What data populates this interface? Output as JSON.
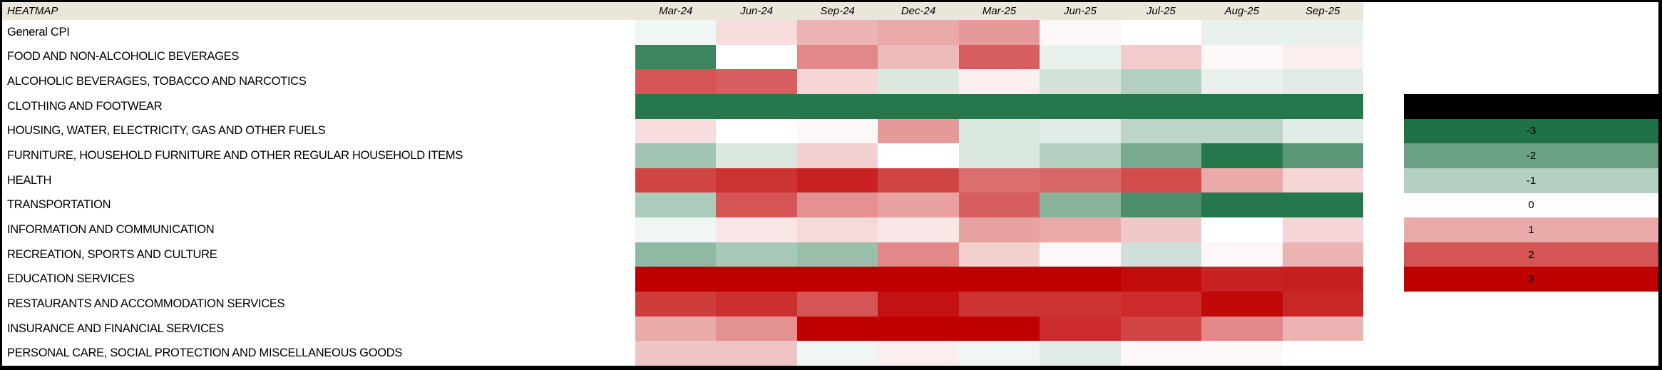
{
  "title": "HEATMAP",
  "colors": {
    "header_bg": "#EAE6DA",
    "frame": "#000000",
    "background": "#FFFFFF",
    "scale_negative_end": "#1F7246",
    "scale_midpoint": "#FFFFFF",
    "scale_positive_end": "#C00000",
    "legend_black_box": "#000000"
  },
  "chart_data": {
    "type": "heatmap",
    "title": "HEATMAP",
    "x_labels": [
      "Mar-24",
      "Jun-24",
      "Sep-24",
      "Dec-24",
      "Mar-25",
      "Jun-25",
      "Jul-25",
      "Aug-25",
      "Sep-25"
    ],
    "rows": [
      {
        "label": "General CPI",
        "values": [
          -0.2,
          0.4,
          0.9,
          1.0,
          1.2,
          0.1,
          0.0,
          -0.3,
          -0.3
        ]
      },
      {
        "label": "FOOD AND NON-ALCOHOLIC BEVERAGES",
        "values": [
          -2.6,
          0.0,
          1.4,
          0.8,
          1.9,
          -0.3,
          0.6,
          0.1,
          0.2
        ]
      },
      {
        "label": "ALCOHOLIC BEVERAGES, TOBACCO AND NARCOTICS",
        "values": [
          2.0,
          1.9,
          0.5,
          -0.5,
          0.2,
          -0.6,
          -1.0,
          -0.3,
          -0.4
        ]
      },
      {
        "label": "CLOTHING AND FOOTWEAR",
        "values": [
          -2.9,
          -2.9,
          -2.9,
          -2.9,
          -2.9,
          -2.9,
          -2.9,
          -2.9,
          -2.9
        ]
      },
      {
        "label": "HOUSING, WATER, ELECTRICITY, GAS AND OTHER FUELS",
        "values": [
          0.4,
          0.0,
          0.1,
          1.2,
          -0.5,
          -0.4,
          -0.9,
          -0.9,
          -0.4
        ]
      },
      {
        "label": "FURNITURE, HOUSEHOLD FURNITURE AND OTHER REGULAR HOUSEHOLD ITEMS",
        "values": [
          -1.25,
          -0.5,
          0.55,
          0.0,
          -0.5,
          -1.0,
          -1.8,
          -2.9,
          -2.2
        ]
      },
      {
        "label": "HEALTH",
        "values": [
          2.2,
          2.4,
          2.6,
          2.2,
          1.7,
          1.8,
          2.1,
          1.0,
          0.5
        ]
      },
      {
        "label": "TRANSPORTATION",
        "values": [
          -1.1,
          2.0,
          1.3,
          1.1,
          1.9,
          -1.6,
          -2.4,
          -2.9,
          -2.9
        ]
      },
      {
        "label": "INFORMATION AND COMMUNICATION",
        "values": [
          -0.2,
          0.3,
          0.45,
          0.3,
          1.1,
          1.0,
          0.65,
          0.0,
          0.5
        ]
      },
      {
        "label": "RECREATION, SPORTS AND CULTURE",
        "values": [
          -1.5,
          -1.15,
          -1.35,
          1.4,
          0.55,
          0.1,
          -0.65,
          0.1,
          0.9
        ]
      },
      {
        "label": "EDUCATION SERVICES",
        "values": [
          3.0,
          3.0,
          3.0,
          3.0,
          3.0,
          3.0,
          2.85,
          2.6,
          2.65
        ]
      },
      {
        "label": "RESTAURANTS AND ACCOMMODATION SERVICES",
        "values": [
          2.3,
          2.45,
          2.0,
          2.8,
          2.4,
          2.4,
          2.5,
          2.9,
          2.55
        ]
      },
      {
        "label": "INSURANCE AND FINANCIAL SERVICES",
        "values": [
          1.0,
          1.3,
          3.0,
          3.0,
          3.0,
          2.5,
          2.2,
          1.4,
          0.9
        ]
      },
      {
        "label": "PERSONAL CARE, SOCIAL PROTECTION AND MISCELLANEOUS GOODS",
        "values": [
          0.7,
          0.7,
          -0.2,
          0.2,
          -0.2,
          -0.4,
          0.1,
          0.1,
          0.0
        ]
      }
    ],
    "color_scale": {
      "domain": [
        -3,
        0,
        3
      ],
      "colors": [
        "#1F7246",
        "#FFFFFF",
        "#C00000"
      ]
    },
    "legend": {
      "position": "right",
      "entries": [
        {
          "label": "",
          "value": null,
          "color": "#000000"
        },
        {
          "label": "-3",
          "value": -3
        },
        {
          "label": "-2",
          "value": -2
        },
        {
          "label": "-1",
          "value": -1
        },
        {
          "label": "0",
          "value": 0
        },
        {
          "label": "1",
          "value": 1
        },
        {
          "label": "2",
          "value": 2
        },
        {
          "label": "3",
          "value": 3
        }
      ]
    }
  }
}
